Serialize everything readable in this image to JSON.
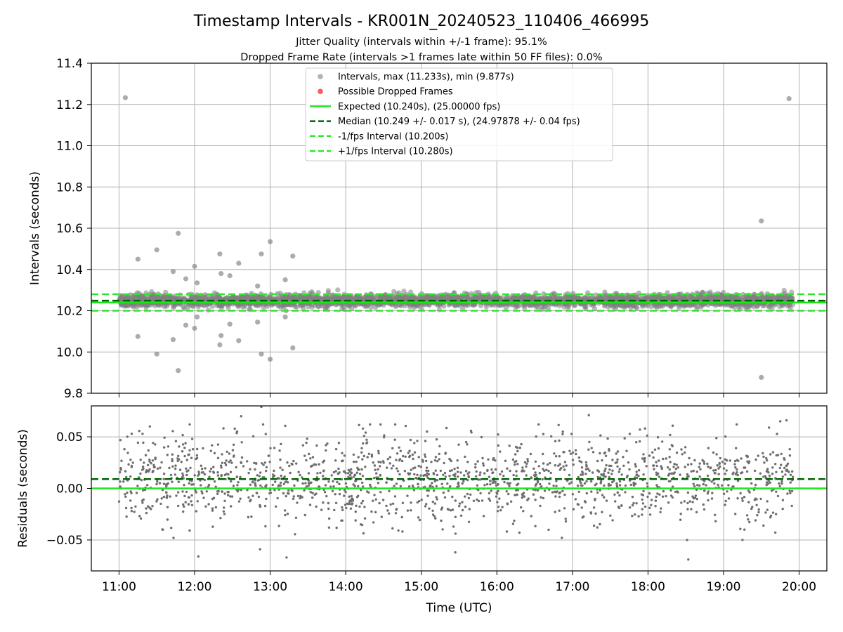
{
  "figure": {
    "title": "Timestamp Intervals - KR001N_20240523_110406_466995",
    "subtitle_1": "Jitter Quality (intervals within +/-1 frame): 95.1%",
    "subtitle_2": "Dropped Frame Rate (intervals >1 frames late within 50 FF files): 0.0%"
  },
  "colors": {
    "points": "#808080",
    "residual_points": "#6e6e6e",
    "dropped": "#ff5a5a",
    "expected": "#1ee61e",
    "median": "#006400",
    "fps_interval": "#2ee62e",
    "grid": "#b0b0b0"
  },
  "chart_data": [
    {
      "type": "scatter",
      "ylabel": "Intervals (seconds)",
      "xlabel": "",
      "xlim": [
        "10:38",
        "20:22"
      ],
      "ylim": [
        9.8,
        11.4
      ],
      "yticks": [
        "9.8",
        "10.0",
        "10.2",
        "10.4",
        "10.6",
        "10.8",
        "11.0",
        "11.2",
        "11.4"
      ],
      "grid": true,
      "legend_position": "top-center",
      "legend": [
        {
          "label": "Intervals, max (11.233s), min (9.877s)",
          "kind": "marker"
        },
        {
          "label": "Possible Dropped Frames",
          "kind": "marker-red"
        },
        {
          "label": "Expected (10.240s), (25.00000 fps)",
          "kind": "solid"
        },
        {
          "label": "Median (10.249 +/- 0.017 s), (24.97878 +/- 0.04 fps)",
          "kind": "dashed-dark"
        },
        {
          "label": "-1/fps Interval (10.200s)",
          "kind": "dashed-light"
        },
        {
          "label": "+1/fps Interval (10.280s)",
          "kind": "dashed-light"
        }
      ],
      "reference_lines": {
        "expected": 10.24,
        "median": 10.249,
        "minus_fps": 10.2,
        "plus_fps": 10.28
      },
      "band": {
        "start": "11:00",
        "end": "19:55",
        "center": 10.249,
        "spread": 0.017,
        "approx_count": 3140
      },
      "outliers": [
        {
          "t": "11:05",
          "y": 11.233
        },
        {
          "t": "11:15",
          "y": 10.45
        },
        {
          "t": "11:15",
          "y": 10.075
        },
        {
          "t": "11:30",
          "y": 10.495
        },
        {
          "t": "11:30",
          "y": 9.99
        },
        {
          "t": "11:43",
          "y": 10.39
        },
        {
          "t": "11:43",
          "y": 10.06
        },
        {
          "t": "11:47",
          "y": 10.575
        },
        {
          "t": "11:47",
          "y": 9.91
        },
        {
          "t": "11:53",
          "y": 10.355
        },
        {
          "t": "11:53",
          "y": 10.13
        },
        {
          "t": "12:00",
          "y": 10.415
        },
        {
          "t": "12:00",
          "y": 10.115
        },
        {
          "t": "12:02",
          "y": 10.335
        },
        {
          "t": "12:02",
          "y": 10.17
        },
        {
          "t": "12:20",
          "y": 10.475
        },
        {
          "t": "12:21",
          "y": 10.38
        },
        {
          "t": "12:21",
          "y": 10.08
        },
        {
          "t": "12:20",
          "y": 10.035
        },
        {
          "t": "12:28",
          "y": 10.37
        },
        {
          "t": "12:28",
          "y": 10.135
        },
        {
          "t": "12:35",
          "y": 10.43
        },
        {
          "t": "12:35",
          "y": 10.055
        },
        {
          "t": "12:50",
          "y": 10.32
        },
        {
          "t": "12:50",
          "y": 10.145
        },
        {
          "t": "12:53",
          "y": 10.475
        },
        {
          "t": "12:53",
          "y": 9.99
        },
        {
          "t": "13:00",
          "y": 10.535
        },
        {
          "t": "13:00",
          "y": 9.965
        },
        {
          "t": "13:12",
          "y": 10.35
        },
        {
          "t": "13:12",
          "y": 10.17
        },
        {
          "t": "13:18",
          "y": 10.465
        },
        {
          "t": "13:18",
          "y": 10.02
        },
        {
          "t": "19:30",
          "y": 10.635
        },
        {
          "t": "19:30",
          "y": 9.877
        },
        {
          "t": "19:52",
          "y": 11.228
        }
      ]
    },
    {
      "type": "scatter",
      "ylabel": "Residuals (seconds)",
      "xlabel": "Time (UTC)",
      "xlim": [
        "10:38",
        "20:22"
      ],
      "ylim": [
        -0.08,
        0.08
      ],
      "yticks": [
        "−0.05",
        "0.00",
        "0.05"
      ],
      "xticks": [
        "11:00",
        "12:00",
        "13:00",
        "14:00",
        "15:00",
        "16:00",
        "17:00",
        "18:00",
        "19:00",
        "20:00"
      ],
      "grid": true,
      "reference_lines": {
        "zero": 0.0,
        "median_offset": 0.009
      },
      "band": {
        "start": "11:00",
        "end": "19:55",
        "center": 0.009,
        "spread": 0.02,
        "approx_count": 1650
      },
      "outliers": [
        {
          "t": "12:03",
          "y": -0.066
        },
        {
          "t": "12:37",
          "y": 0.07
        },
        {
          "t": "12:52",
          "y": -0.059
        },
        {
          "t": "12:53",
          "y": 0.079
        },
        {
          "t": "13:13",
          "y": -0.067
        },
        {
          "t": "15:27",
          "y": -0.062
        },
        {
          "t": "17:13",
          "y": 0.071
        },
        {
          "t": "18:32",
          "y": -0.069
        },
        {
          "t": "18:31",
          "y": -0.05
        },
        {
          "t": "19:15",
          "y": -0.05
        },
        {
          "t": "19:45",
          "y": 0.065
        },
        {
          "t": "19:50",
          "y": 0.066
        }
      ]
    }
  ]
}
